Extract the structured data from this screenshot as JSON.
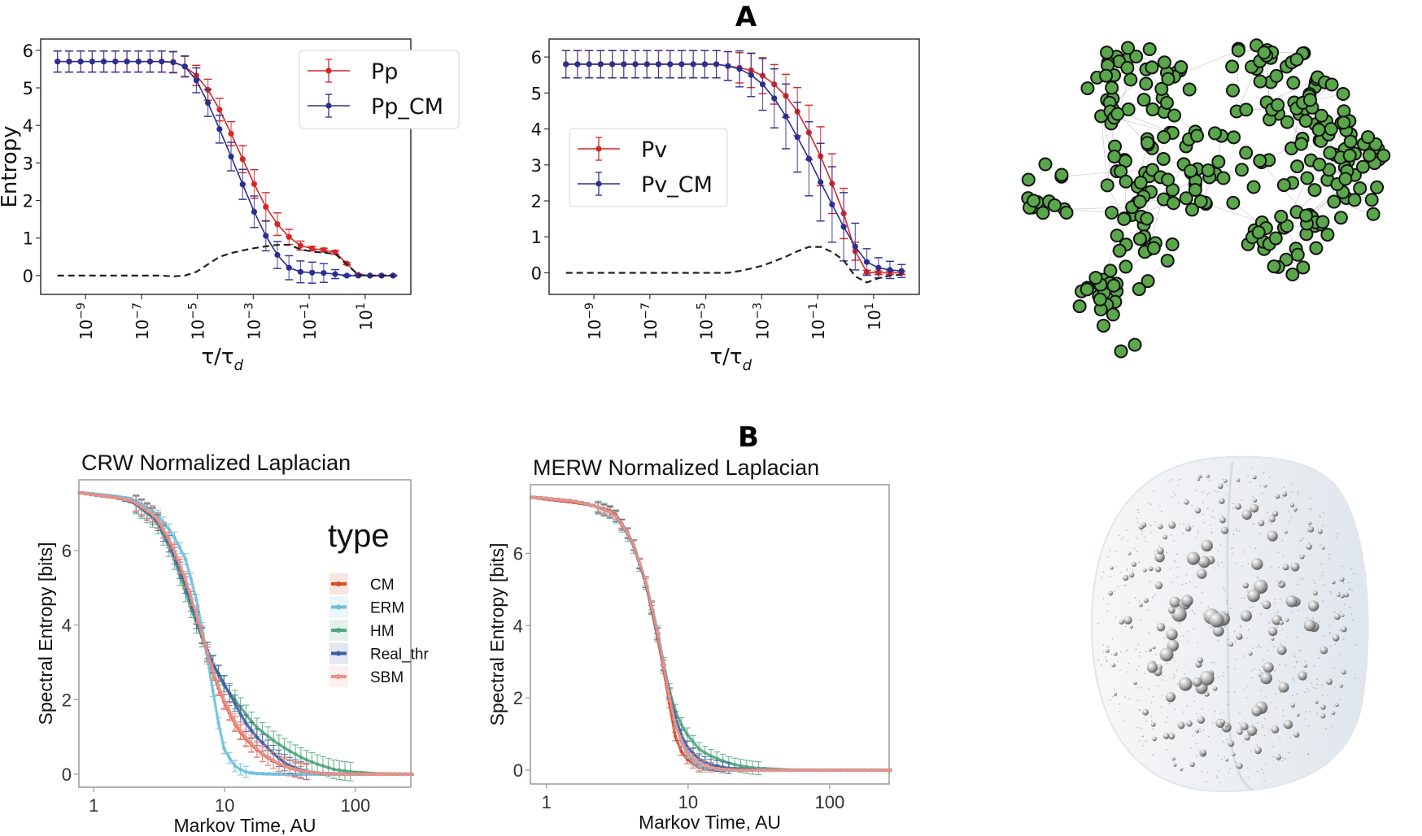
{
  "panels": {
    "a_label": "A",
    "b_label": "B"
  },
  "colors": {
    "red": "#d62728",
    "navy": "#2b2f8f",
    "dashed": "#222222",
    "network_node": "#5aa64a",
    "network_edge": "#9a9a9a",
    "CM": "#d9482b",
    "ERM": "#6cc0dc",
    "HM": "#4fa77a",
    "Real_thr": "#3e5ea3",
    "SBM": "#e9938a"
  },
  "chart_data": [
    {
      "type": "line",
      "ylabel": "Entropy",
      "xlabel_main": "τ/τ",
      "xlabel_sub": "d",
      "xscale": "log",
      "xlim": [
        2.5e-11,
        430
      ],
      "ylim": [
        -0.5,
        6.3
      ],
      "yticks": [
        0,
        1,
        2,
        3,
        4,
        5,
        6
      ],
      "xticks": [
        {
          "value": 1e-09,
          "base": "10",
          "exp": "−9"
        },
        {
          "value": 1e-07,
          "base": "10",
          "exp": "−7"
        },
        {
          "value": 1e-05,
          "base": "10",
          "exp": "−5"
        },
        {
          "value": 0.001,
          "base": "10",
          "exp": "−3"
        },
        {
          "value": 0.1,
          "base": "10",
          "exp": "−1"
        },
        {
          "value": 10,
          "base": "10",
          "exp": "1"
        }
      ],
      "legend": "top-right",
      "x": [
        1e-10,
        2.59e-10,
        6.72e-10,
        1.74e-09,
        4.52e-09,
        1.17e-08,
        3.04e-08,
        7.88e-08,
        2.04e-07,
        5.3e-07,
        1.37e-06,
        3.56e-06,
        9.24e-06,
        2.39e-05,
        6.21e-05,
        0.000161,
        0.000418,
        0.00108,
        0.00281,
        0.00728,
        0.0189,
        0.0489,
        0.127,
        0.329,
        0.853,
        2.21,
        5.74,
        14.9,
        38.5,
        100
      ],
      "series": [
        {
          "name": "Pp",
          "color": "#d62728",
          "values": [
            5.7,
            5.7,
            5.7,
            5.7,
            5.7,
            5.7,
            5.7,
            5.7,
            5.7,
            5.7,
            5.69,
            5.57,
            5.33,
            4.95,
            4.42,
            3.78,
            3.1,
            2.44,
            1.83,
            1.37,
            1.03,
            0.8,
            0.72,
            0.68,
            0.62,
            0.32,
            0.02,
            0,
            0,
            0
          ],
          "err": [
            0.28,
            0.28,
            0.28,
            0.28,
            0.28,
            0.28,
            0.28,
            0.28,
            0.28,
            0.28,
            0.28,
            0.27,
            0.27,
            0.28,
            0.3,
            0.32,
            0.36,
            0.38,
            0.38,
            0.3,
            0.2,
            0.12,
            0.06,
            0.05,
            0.05,
            0.03,
            0.02,
            0.01,
            0.01,
            0.01
          ]
        },
        {
          "name": "Pp_CM",
          "color": "#2b2f8f",
          "values": [
            5.7,
            5.7,
            5.7,
            5.7,
            5.7,
            5.7,
            5.7,
            5.7,
            5.7,
            5.7,
            5.68,
            5.57,
            5.2,
            4.6,
            3.9,
            3.17,
            2.43,
            1.7,
            1.06,
            0.55,
            0.21,
            0.1,
            0.08,
            0.07,
            0.04,
            0,
            0,
            0,
            0,
            0
          ],
          "err": [
            0.28,
            0.28,
            0.28,
            0.28,
            0.28,
            0.28,
            0.28,
            0.28,
            0.28,
            0.28,
            0.28,
            0.28,
            0.33,
            0.36,
            0.37,
            0.38,
            0.4,
            0.42,
            0.4,
            0.36,
            0.32,
            0.29,
            0.28,
            0.25,
            0.12,
            0.02,
            0.01,
            0.01,
            0.01,
            0.01
          ]
        },
        {
          "style": "dashed",
          "color": "#222222",
          "values": [
            0,
            0,
            0,
            0,
            0,
            0,
            0,
            0,
            0,
            0,
            -0.02,
            0,
            0.1,
            0.3,
            0.5,
            0.6,
            0.67,
            0.73,
            0.78,
            0.82,
            0.82,
            0.7,
            0.64,
            0.61,
            0.58,
            0.3,
            0.02,
            0,
            0,
            0
          ]
        }
      ]
    },
    {
      "type": "line",
      "xlabel_main": "τ/τ",
      "xlabel_sub": "d",
      "xscale": "log",
      "xlim": [
        2.5e-11,
        430
      ],
      "ylim": [
        -0.6,
        6.5
      ],
      "yticks": [
        0,
        1,
        2,
        3,
        4,
        5,
        6
      ],
      "xticks": [
        {
          "value": 1e-09,
          "base": "10",
          "exp": "−9"
        },
        {
          "value": 1e-07,
          "base": "10",
          "exp": "−7"
        },
        {
          "value": 1e-05,
          "base": "10",
          "exp": "−5"
        },
        {
          "value": 0.001,
          "base": "10",
          "exp": "−3"
        },
        {
          "value": 0.1,
          "base": "10",
          "exp": "−1"
        },
        {
          "value": 10,
          "base": "10",
          "exp": "1"
        }
      ],
      "legend": "center-left",
      "x": [
        1e-10,
        2.59e-10,
        6.72e-10,
        1.74e-09,
        4.52e-09,
        1.17e-08,
        3.04e-08,
        7.88e-08,
        2.04e-07,
        5.3e-07,
        1.37e-06,
        3.56e-06,
        9.24e-06,
        2.39e-05,
        6.21e-05,
        0.000161,
        0.000418,
        0.00108,
        0.00281,
        0.00728,
        0.0189,
        0.0489,
        0.127,
        0.329,
        0.853,
        2.21,
        5.74,
        14.9,
        38.5,
        100
      ],
      "series": [
        {
          "name": "Pv",
          "color": "#d62728",
          "values": [
            5.8,
            5.8,
            5.8,
            5.8,
            5.8,
            5.8,
            5.8,
            5.8,
            5.8,
            5.8,
            5.8,
            5.8,
            5.8,
            5.8,
            5.75,
            5.7,
            5.63,
            5.48,
            5.24,
            4.92,
            4.48,
            3.9,
            3.24,
            2.48,
            1.65,
            0.6,
            0.02,
            0,
            0,
            0
          ],
          "err": [
            0.38,
            0.38,
            0.38,
            0.38,
            0.38,
            0.38,
            0.38,
            0.38,
            0.38,
            0.38,
            0.38,
            0.38,
            0.38,
            0.38,
            0.4,
            0.42,
            0.48,
            0.5,
            0.55,
            0.6,
            0.67,
            0.76,
            0.82,
            0.83,
            0.7,
            0.25,
            0.05,
            0.05,
            0.05,
            0.05
          ]
        },
        {
          "name": "Pv_CM",
          "color": "#2b2f8f",
          "values": [
            5.8,
            5.8,
            5.8,
            5.8,
            5.8,
            5.8,
            5.8,
            5.8,
            5.8,
            5.8,
            5.8,
            5.8,
            5.8,
            5.8,
            5.75,
            5.67,
            5.5,
            5.24,
            4.85,
            4.35,
            3.77,
            3.17,
            2.52,
            1.9,
            1.28,
            0.73,
            0.3,
            0.14,
            0.08,
            0.05
          ],
          "err": [
            0.38,
            0.38,
            0.38,
            0.38,
            0.38,
            0.38,
            0.38,
            0.38,
            0.38,
            0.38,
            0.38,
            0.38,
            0.38,
            0.38,
            0.4,
            0.5,
            0.6,
            0.72,
            0.82,
            0.9,
            0.97,
            1.03,
            1.08,
            1.05,
            0.95,
            0.65,
            0.37,
            0.28,
            0.24,
            0.18
          ]
        },
        {
          "style": "dashed",
          "color": "#222222",
          "values": [
            0,
            0,
            0,
            0,
            0,
            0,
            0,
            0,
            0,
            0,
            0,
            0,
            0,
            0,
            0,
            0.05,
            0.12,
            0.2,
            0.32,
            0.45,
            0.6,
            0.72,
            0.72,
            0.58,
            0.35,
            -0.1,
            -0.27,
            -0.15,
            -0.08,
            -0.05
          ]
        }
      ]
    },
    {
      "type": "line",
      "title": "CRW Normalized Laplacian",
      "xlabel": "Markov Time, AU",
      "ylabel": "Spectral Entropy [bits]",
      "xscale": "log",
      "xlim": [
        0.77,
        265
      ],
      "ylim": [
        -0.35,
        7.9
      ],
      "yticks": [
        0,
        2,
        4,
        6
      ],
      "xticks": [
        {
          "value": 1,
          "label": "1"
        },
        {
          "value": 10,
          "label": "10"
        },
        {
          "value": 100,
          "label": "100"
        }
      ],
      "legend_title": "type",
      "legend": "right",
      "x": [
        0.8,
        1,
        1.5,
        2,
        3,
        4,
        5,
        6,
        7,
        8,
        9,
        10,
        12,
        14,
        17,
        20,
        25,
        30,
        40,
        50,
        70,
        100,
        150,
        265
      ],
      "series": [
        {
          "name": "CM",
          "color": "#d9482b",
          "err": 0.2,
          "values": [
            7.55,
            7.5,
            7.42,
            7.32,
            6.9,
            6.1,
            5.2,
            4.3,
            3.5,
            2.8,
            2.3,
            1.9,
            1.35,
            1.0,
            0.7,
            0.5,
            0.3,
            0.18,
            0.07,
            0.03,
            0.01,
            0,
            0,
            0
          ]
        },
        {
          "name": "ERM",
          "color": "#6cc0dc",
          "err": 0.15,
          "values": [
            7.55,
            7.52,
            7.45,
            7.38,
            7.0,
            6.45,
            5.8,
            4.8,
            3.6,
            2.4,
            1.35,
            0.62,
            0.22,
            0.07,
            0.02,
            0.01,
            0,
            0,
            0,
            0,
            0,
            0,
            0,
            0
          ]
        },
        {
          "name": "HM",
          "color": "#4fa77a",
          "err": 0.25,
          "values": [
            7.55,
            7.5,
            7.42,
            7.3,
            6.8,
            5.9,
            4.9,
            4.1,
            3.5,
            3.0,
            2.65,
            2.35,
            2.0,
            1.68,
            1.3,
            1.1,
            0.84,
            0.66,
            0.42,
            0.28,
            0.12,
            0.05,
            0.01,
            0
          ]
        },
        {
          "name": "Real_thr",
          "color": "#3e5ea3",
          "err": 0.22,
          "values": [
            7.55,
            7.5,
            7.42,
            7.3,
            6.85,
            6.0,
            5.1,
            4.2,
            3.55,
            3.0,
            2.7,
            2.4,
            1.9,
            1.45,
            1.05,
            0.8,
            0.47,
            0.26,
            0.09,
            0.03,
            0.01,
            0,
            0,
            0
          ]
        },
        {
          "name": "SBM",
          "color": "#e9938a",
          "err": 0.22,
          "values": [
            7.55,
            7.5,
            7.42,
            7.33,
            6.9,
            6.12,
            5.25,
            4.35,
            3.55,
            2.85,
            2.35,
            1.95,
            1.4,
            1.05,
            0.73,
            0.52,
            0.32,
            0.19,
            0.08,
            0.03,
            0.01,
            0,
            0,
            0
          ]
        }
      ]
    },
    {
      "type": "line",
      "title": "MERW Normalized Laplacian",
      "xlabel": "Markov Time, AU",
      "ylabel": "Spectral Entropy [bits]",
      "xscale": "log",
      "xlim": [
        0.77,
        263
      ],
      "ylim": [
        -0.38,
        7.9
      ],
      "yticks": [
        0,
        2,
        4,
        6
      ],
      "xticks": [
        {
          "value": 1,
          "label": "1"
        },
        {
          "value": 10,
          "label": "10"
        },
        {
          "value": 100,
          "label": "100"
        }
      ],
      "x": [
        0.8,
        1,
        1.5,
        2,
        3,
        4,
        5,
        6,
        7,
        8,
        9,
        10,
        12,
        14,
        17,
        20,
        25,
        30,
        40,
        50,
        70,
        100,
        150,
        263
      ],
      "series": [
        {
          "name": "CM",
          "color": "#d9482b",
          "err": 0.12,
          "values": [
            7.55,
            7.5,
            7.42,
            7.35,
            7.15,
            6.4,
            5.2,
            3.8,
            2.4,
            1.0,
            0.5,
            0.27,
            0.07,
            0.02,
            0,
            0,
            0,
            0,
            0,
            0,
            0,
            0,
            0,
            0
          ]
        },
        {
          "name": "ERM",
          "color": "#6cc0dc",
          "err": 0.12,
          "values": [
            7.55,
            7.52,
            7.45,
            7.36,
            7.1,
            6.4,
            5.25,
            4.0,
            2.6,
            1.4,
            0.75,
            0.4,
            0.1,
            0.04,
            0.01,
            0,
            0,
            0,
            0,
            0,
            0,
            0,
            0,
            0
          ]
        },
        {
          "name": "HM",
          "color": "#4fa77a",
          "err": 0.18,
          "values": [
            7.55,
            7.52,
            7.45,
            7.36,
            7.1,
            6.35,
            5.2,
            3.9,
            2.55,
            1.7,
            1.25,
            0.95,
            0.58,
            0.42,
            0.28,
            0.18,
            0.1,
            0.06,
            0.03,
            0.01,
            0,
            0,
            0,
            0
          ]
        },
        {
          "name": "Real_thr",
          "color": "#3e5ea3",
          "err": 0.15,
          "values": [
            7.55,
            7.52,
            7.45,
            7.36,
            7.1,
            6.4,
            5.22,
            3.9,
            2.5,
            1.55,
            0.95,
            0.6,
            0.3,
            0.17,
            0.09,
            0.05,
            0.03,
            0.01,
            0,
            0,
            0,
            0,
            0,
            0
          ]
        },
        {
          "name": "SBM",
          "color": "#e9938a",
          "err": 0.13,
          "values": [
            7.55,
            7.52,
            7.45,
            7.36,
            7.1,
            6.4,
            5.25,
            3.95,
            2.5,
            1.35,
            0.8,
            0.45,
            0.18,
            0.08,
            0.03,
            0.01,
            0,
            0,
            0,
            0,
            0,
            0,
            0,
            0
          ]
        }
      ]
    }
  ]
}
